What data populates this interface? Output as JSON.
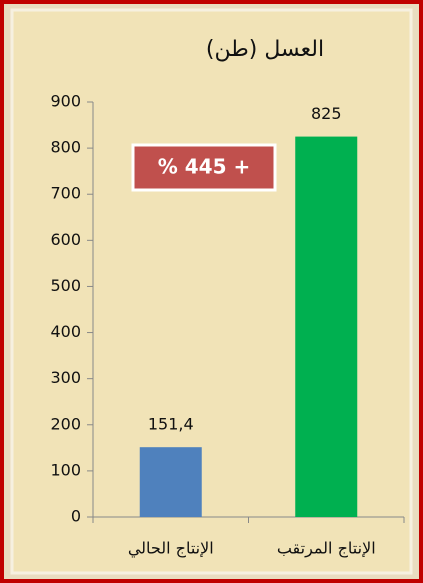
{
  "chart_data": {
    "type": "bar",
    "title": "العسل (طن)",
    "categories": [
      "الإنتاج الحالي",
      "الإنتاج المرتقب"
    ],
    "values": [
      151.4,
      825
    ],
    "value_labels": [
      "151,4",
      "825"
    ],
    "colors": [
      "#4f81bd",
      "#00b050"
    ],
    "ylim": [
      0,
      900
    ],
    "yticks": [
      0,
      100,
      200,
      300,
      400,
      500,
      600,
      700,
      800,
      900
    ],
    "annotation": "% 445 +"
  }
}
